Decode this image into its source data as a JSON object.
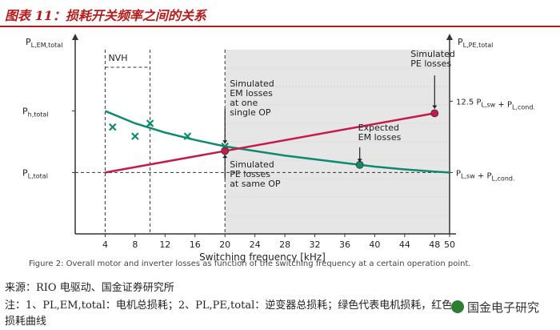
{
  "title": "图表 11：损耗开关频率之间的关系",
  "source": "来源：RIO 电驱动、国金证券研究所",
  "note_line1": "注：1、PL,EM,total：电机总损耗；2、PL,PE,total：逆变器总损耗；绿色代表电机损耗，红色代表逆变器",
  "note_line2": "损耗曲线",
  "watermark": "国金电子研究",
  "colors": {
    "em": "#0e8a6f",
    "pe": "#c8194b",
    "shade": "#e6e6e6",
    "title": "#b71c1c"
  },
  "chart_data": {
    "type": "line",
    "xlabel": "Switching frequency [kHz]",
    "xlim": [
      0,
      50
    ],
    "xticks": [
      4,
      8,
      12,
      16,
      20,
      24,
      28,
      32,
      36,
      40,
      44,
      48,
      50
    ],
    "xtick_labels": [
      "4",
      "8",
      "12",
      "16",
      "20",
      "24",
      "28",
      "32",
      "36",
      "40",
      "44",
      "48",
      "50"
    ],
    "ylim": [
      0,
      1
    ],
    "left_axis_label": "P_L,EM,total",
    "right_axis_label": "P_L,PE,total",
    "left_ticks": [
      {
        "label": "P_h,total",
        "y": 0.667
      },
      {
        "label": "P_L,total",
        "y": 0.333
      }
    ],
    "right_labels": [
      {
        "label": "12.5 P_L,sw + P_L,cond.",
        "y": 0.72
      },
      {
        "label": "P_L,sw + P_L,cond.",
        "y": 0.333
      }
    ],
    "nvh_region": {
      "label": "NVH",
      "x_start": 4,
      "x_end": 10
    },
    "shaded_region_x": [
      20,
      50
    ],
    "series": [
      {
        "name": "EM losses",
        "color": "#0e8a6f",
        "x": [
          4,
          8,
          12,
          16,
          20,
          24,
          28,
          32,
          36,
          40,
          44,
          48,
          50
        ],
        "y": [
          0.667,
          0.6,
          0.55,
          0.51,
          0.475,
          0.45,
          0.425,
          0.405,
          0.385,
          0.365,
          0.35,
          0.338,
          0.333
        ]
      },
      {
        "name": "PE losses",
        "color": "#c8194b",
        "x": [
          4,
          48
        ],
        "y": [
          0.333,
          0.655
        ]
      }
    ],
    "measured_points": {
      "marker": "x",
      "x": [
        5,
        8,
        10,
        15,
        20
      ],
      "y": [
        0.58,
        0.53,
        0.6,
        0.53,
        0.475
      ]
    },
    "highlight_points": [
      {
        "series": "PE",
        "x": 20,
        "y": 0.45
      },
      {
        "series": "PE",
        "x": 48,
        "y": 0.655
      },
      {
        "series": "EM",
        "x": 38,
        "y": 0.375
      }
    ],
    "annotations": [
      "Simulated\nEM losses\nat one\nsingle OP",
      "Simulated\nPE losses\nat same OP",
      "Expected\nEM losses",
      "Simulated\nPE losses"
    ],
    "caption": "Figure 2: Overall motor and inverter losses as function of the switching frequency at a certain operation point."
  }
}
